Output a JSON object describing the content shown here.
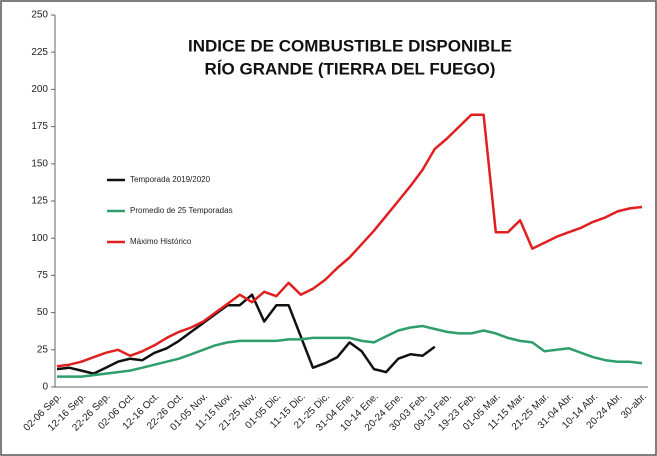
{
  "chart_data": {
    "type": "line",
    "title": [
      "INDICE DE COMBUSTIBLE DISPONIBLE",
      "RÍO GRANDE (TIERRA DEL FUEGO)"
    ],
    "categories": [
      "02-06 Sep.",
      null,
      "12-16 Sep.",
      null,
      "22-26 Sep.",
      null,
      "02-06 Oct.",
      null,
      "12-16 Oct.",
      null,
      "22-26 Oct.",
      null,
      "01-05 Nov.",
      null,
      "11-15 Nov.",
      null,
      "21-25 Nov.",
      null,
      "01-05 Dic.",
      null,
      "11-15 Dic.",
      null,
      "21-25 Dic.",
      null,
      "31-04 Ene.",
      null,
      "10-14 Ene.",
      null,
      "20-24 Ene.",
      null,
      "30-03 Feb.",
      null,
      "09-13 Feb.",
      null,
      "19-23 Feb.",
      null,
      "01-05 Mar.",
      null,
      "11-15 Mar.",
      null,
      "21-25 Mar.",
      null,
      "31-04 Abr.",
      null,
      "10-14 Abr.",
      null,
      "20-24 Abr.",
      null,
      "30-abr."
    ],
    "series": [
      {
        "name": "Temporada 2019/2020",
        "color": "#111111",
        "values": [
          12,
          13,
          11,
          9,
          13,
          17,
          19,
          18,
          23,
          26,
          31,
          37,
          43,
          49,
          55,
          55,
          62,
          44,
          55,
          55,
          34,
          13,
          16,
          20,
          30,
          24,
          12,
          10,
          19,
          22,
          21,
          27,
          null,
          null,
          null,
          null,
          null,
          null,
          null,
          null,
          null,
          null,
          null,
          null,
          null,
          null,
          null,
          null,
          null
        ]
      },
      {
        "name": "Promedio de 25 Temporadas",
        "color": "#2e9e6b",
        "values": [
          7,
          7,
          7,
          8,
          9,
          10,
          11,
          13,
          15,
          17,
          19,
          22,
          25,
          28,
          30,
          31,
          31,
          31,
          31,
          32,
          32,
          33,
          33,
          33,
          33,
          31,
          30,
          34,
          38,
          40,
          41,
          39,
          37,
          36,
          36,
          38,
          36,
          33,
          31,
          30,
          24,
          25,
          26,
          23,
          20,
          18,
          17,
          17,
          16
        ]
      },
      {
        "name": "Máximo Histórico",
        "color": "#e02020",
        "values": [
          14,
          15,
          17,
          20,
          23,
          25,
          21,
          24,
          28,
          33,
          37,
          40,
          44,
          50,
          56,
          62,
          57,
          64,
          61,
          70,
          62,
          66,
          72,
          80,
          87,
          96,
          105,
          115,
          125,
          135,
          146,
          160,
          167,
          175,
          183,
          183,
          104,
          104,
          112,
          93,
          97,
          101,
          104,
          107,
          111,
          114,
          118,
          120,
          121
        ]
      }
    ],
    "ylim": [
      0,
      250
    ],
    "yticks": [
      0,
      25,
      50,
      75,
      100,
      125,
      150,
      175,
      200,
      225,
      250
    ]
  }
}
